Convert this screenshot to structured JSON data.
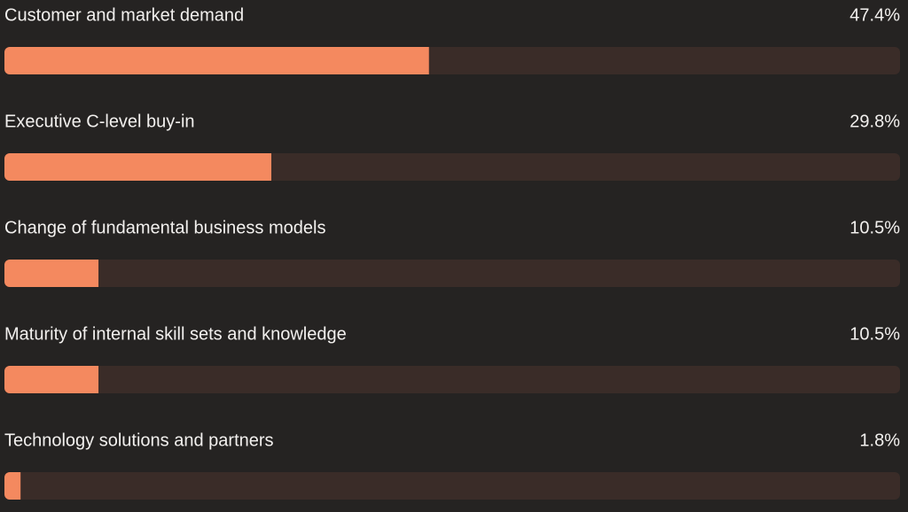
{
  "chart_data": {
    "type": "bar",
    "categories": [
      "Customer and market demand",
      "Executive C-level buy-in",
      "Change of fundamental business models",
      "Maturity of internal skill sets and knowledge",
      "Technology solutions and partners"
    ],
    "values": [
      47.4,
      29.8,
      10.5,
      10.5,
      1.8
    ],
    "value_labels": [
      "47.4%",
      "29.8%",
      "10.5%",
      "10.5%",
      "1.8%"
    ],
    "xlim": [
      0,
      100
    ],
    "color": "#f4895f"
  }
}
